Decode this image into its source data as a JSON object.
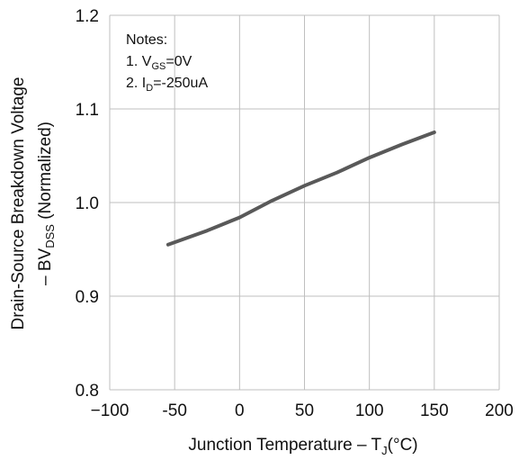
{
  "chart_data": {
    "type": "line",
    "xlabel_main": "Junction Temperature  –  T",
    "xlabel_sub": "J",
    "xlabel_unit": "(°C)",
    "ylabel_line1": "Drain-Source Breakdown Voltage",
    "ylabel_line2_prefix": "– BV",
    "ylabel_line2_sub": "DSS",
    "ylabel_line2_suffix": " (Normalized)",
    "xlim": [
      -100,
      200
    ],
    "ylim": [
      0.8,
      1.2
    ],
    "x_ticks": [
      -100,
      -50,
      0,
      50,
      100,
      150,
      200
    ],
    "x_tick_labels": [
      "−100",
      "-50",
      "0",
      "50",
      "100",
      "150",
      "200"
    ],
    "y_ticks": [
      0.8,
      0.9,
      1.0,
      1.1,
      1.2
    ],
    "y_tick_labels": [
      "0.8",
      "0.9",
      "1.0",
      "1.1",
      "1.2"
    ],
    "grid": true,
    "series": [
      {
        "color": "#595959",
        "x": [
          -55,
          -25,
          0,
          25,
          50,
          75,
          100,
          125,
          150
        ],
        "y": [
          0.955,
          0.97,
          0.984,
          1.002,
          1.018,
          1.032,
          1.048,
          1.062,
          1.075
        ]
      }
    ],
    "notes": {
      "title": "Notes:",
      "item1_prefix": "1. V",
      "item1_sub": "GS",
      "item1_suffix": "=0V",
      "item2_prefix": "2. I",
      "item2_sub": "D",
      "item2_suffix": "=-250uA"
    }
  }
}
